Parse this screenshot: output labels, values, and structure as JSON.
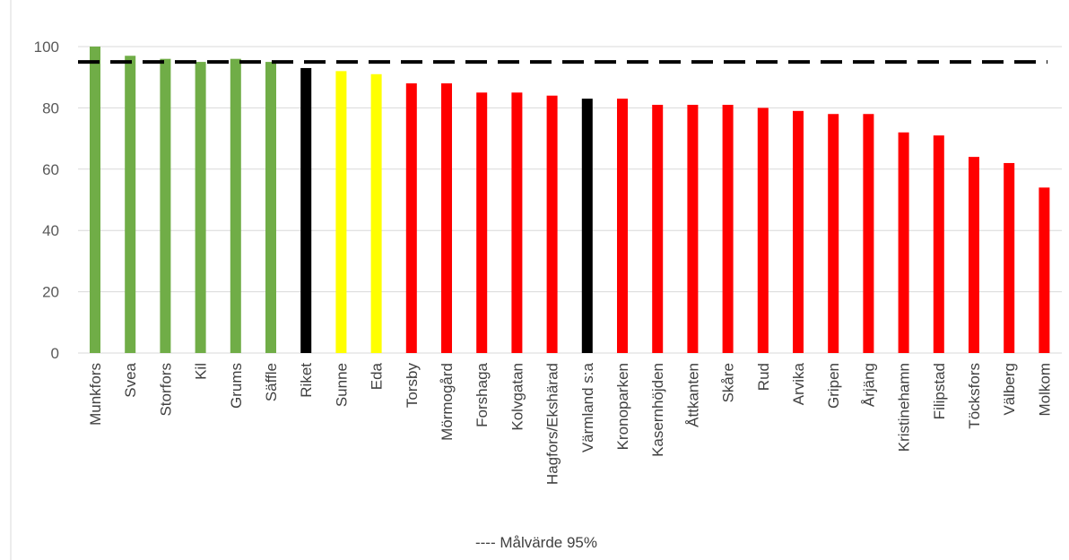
{
  "chart_data": {
    "type": "bar",
    "categories": [
      "Munkfors",
      "Svea",
      "Storfors",
      "Kil",
      "Grums",
      "Säffle",
      "Riket",
      "Sunne",
      "Eda",
      "Torsby",
      "Mörmogård",
      "Forshaga",
      "Kolvgatan",
      "Hagfors/Ekshärad",
      "Värmland s:a",
      "Kronoparken",
      "Kasernhöjden",
      "Åttkanten",
      "Skåre",
      "Rud",
      "Arvika",
      "Gripen",
      "Årjäng",
      "Kristinehamn",
      "Filipstad",
      "Töcksfors",
      "Välberg",
      "Molkom"
    ],
    "values": [
      100,
      97,
      96,
      95,
      96,
      95,
      93,
      92,
      91,
      88,
      88,
      85,
      85,
      84,
      83,
      83,
      81,
      81,
      81,
      80,
      79,
      78,
      78,
      72,
      71,
      64,
      62,
      54
    ],
    "bar_colors": [
      "#70ad47",
      "#70ad47",
      "#70ad47",
      "#70ad47",
      "#70ad47",
      "#70ad47",
      "#000000",
      "#ffff00",
      "#ffff00",
      "#ff0000",
      "#ff0000",
      "#ff0000",
      "#ff0000",
      "#ff0000",
      "#000000",
      "#ff0000",
      "#ff0000",
      "#ff0000",
      "#ff0000",
      "#ff0000",
      "#ff0000",
      "#ff0000",
      "#ff0000",
      "#ff0000",
      "#ff0000",
      "#ff0000",
      "#ff0000",
      "#ff0000"
    ],
    "ylim": [
      0,
      100
    ],
    "yticks": [
      0,
      20,
      40,
      60,
      80,
      100
    ],
    "target_value": 95,
    "target_color": "#000000",
    "grid": true,
    "legend_text": "---- Målvärde 95%",
    "legend_position": "bottom-center"
  }
}
